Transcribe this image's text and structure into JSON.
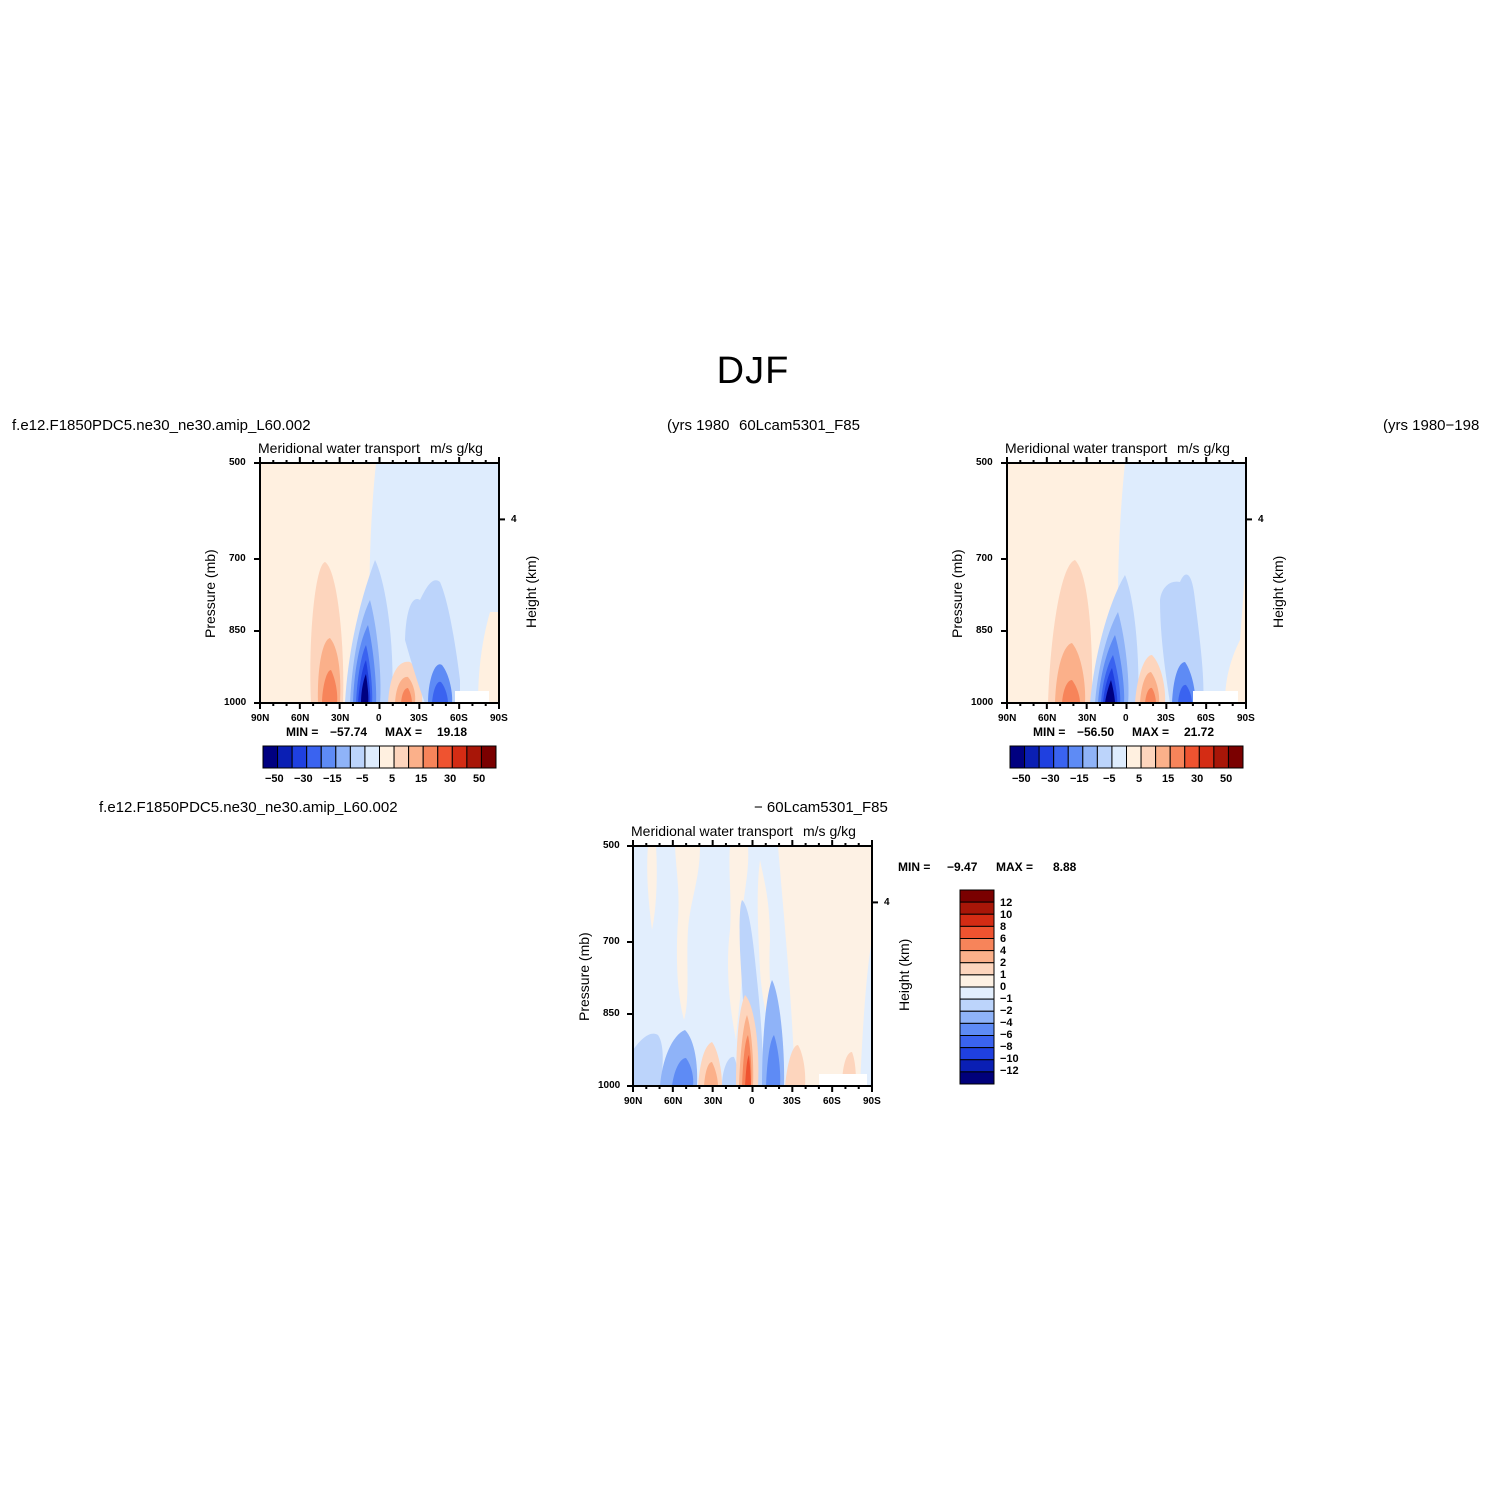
{
  "figure": {
    "title": "DJF",
    "top_left_case": "f.e12.F1850PDC5.ne30_ne30.amip_L60.002",
    "top_left_years": "(yrs 1980",
    "top_right_case": "60Lcam5301_F85",
    "top_right_years": "(yrs 1980−198",
    "diff_left_case": "f.e12.F1850PDC5.ne30_ne30.amip_L60.002",
    "diff_right_case": "− 60Lcam5301_F85"
  },
  "colors": {
    "levels12": [
      "#000080",
      "#0a1fb4",
      "#1f40e0",
      "#3a63f0",
      "#5e8bf5",
      "#8fb3f8",
      "#bcd4fb",
      "#deecfd",
      "#fff0e0",
      "#fdd5bd",
      "#fbb08a",
      "#f7845a",
      "#ef5330",
      "#d42c14",
      "#a81608",
      "#7a0000"
    ],
    "diff": [
      "#00007a",
      "#0a1fb4",
      "#1f40e0",
      "#3a63f0",
      "#5e8bf5",
      "#8fb3f8",
      "#bcd4fb",
      "#e2eefd",
      "#fdf1e4",
      "#fdd5bd",
      "#fbb08a",
      "#f7845a",
      "#ef5330",
      "#d42c14",
      "#a81608"
    ]
  },
  "chart_data": [
    {
      "type": "contour",
      "panel": "model",
      "title": "Meridional water transport",
      "units": "m/s g/kg",
      "ylabel": "Pressure (mb)",
      "ylabel_right": "Height (km)",
      "y_ticks": [
        "500",
        "700",
        "850",
        "1000"
      ],
      "y_right_ticks": [
        "4"
      ],
      "x_ticks": [
        "90N",
        "60N",
        "30N",
        "0",
        "30S",
        "60S",
        "90S"
      ],
      "stats": {
        "min_label": "MIN =",
        "min": "−57.74",
        "max_label": "MAX =",
        "max": "19.18"
      },
      "colorbar_labels": [
        "−50",
        "−30",
        "−15",
        "−5",
        "5",
        "15",
        "30",
        "50"
      ],
      "colorbar_levels": [
        -50,
        -40,
        -30,
        -20,
        -15,
        -10,
        -5,
        0,
        5,
        10,
        15,
        20,
        30,
        40,
        50
      ]
    },
    {
      "type": "contour",
      "panel": "obs",
      "title": "Meridional water transport",
      "units": "m/s g/kg",
      "ylabel": "Pressure (mb)",
      "ylabel_right": "Height (km)",
      "y_ticks": [
        "500",
        "700",
        "850",
        "1000"
      ],
      "y_right_ticks": [
        "4"
      ],
      "x_ticks": [
        "90N",
        "60N",
        "30N",
        "0",
        "30S",
        "60S",
        "90S"
      ],
      "stats": {
        "min_label": "MIN =",
        "min": "−56.50",
        "max_label": "MAX =",
        "max": "21.72"
      },
      "colorbar_labels": [
        "−50",
        "−30",
        "−15",
        "−5",
        "5",
        "15",
        "30",
        "50"
      ],
      "colorbar_levels": [
        -50,
        -40,
        -30,
        -20,
        -15,
        -10,
        -5,
        0,
        5,
        10,
        15,
        20,
        30,
        40,
        50
      ]
    },
    {
      "type": "contour",
      "panel": "difference",
      "title": "Meridional water transport",
      "units": "m/s g/kg",
      "ylabel": "Pressure (mb)",
      "ylabel_right": "Height (km)",
      "y_ticks": [
        "500",
        "700",
        "850",
        "1000"
      ],
      "y_right_ticks": [
        "4"
      ],
      "x_ticks": [
        "90N",
        "60N",
        "30N",
        "0",
        "30S",
        "60S",
        "90S"
      ],
      "stats": {
        "min_label": "MIN =",
        "min": "−9.47",
        "max_label": "MAX =",
        "max": "8.88"
      },
      "colorbar_labels": [
        "12",
        "10",
        "8",
        "6",
        "4",
        "2",
        "1",
        "0",
        "−1",
        "−2",
        "−4",
        "−6",
        "−8",
        "−10",
        "−12"
      ],
      "colorbar_levels": [
        -12,
        -10,
        -8,
        -6,
        -4,
        -2,
        -1,
        0,
        1,
        2,
        4,
        6,
        8,
        10,
        12
      ]
    }
  ]
}
